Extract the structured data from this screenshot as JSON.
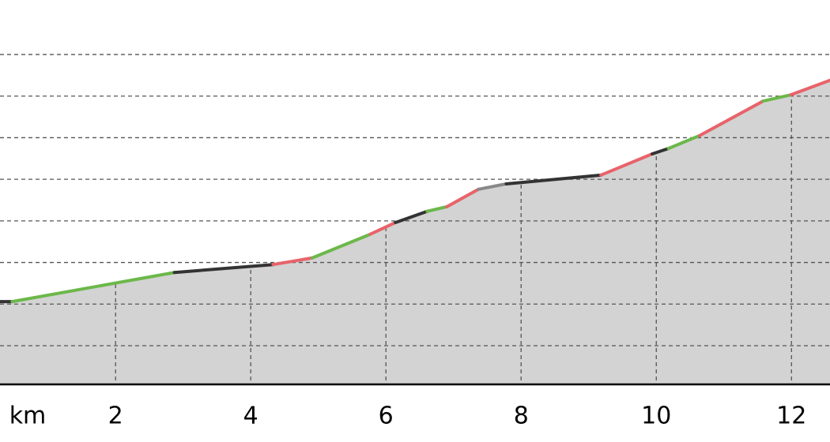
{
  "chart_data": {
    "type": "profile",
    "x_label": "km",
    "x": [
      0.29,
      0.47,
      2.87,
      4.33,
      4.91,
      5.77,
      6.14,
      6.61,
      6.9,
      7.37,
      7.78,
      9.18,
      9.94,
      10.18,
      10.64,
      11.58,
      11.99,
      12.57
    ],
    "values": [
      2.06,
      2.06,
      2.76,
      2.95,
      3.11,
      3.68,
      3.96,
      4.23,
      4.34,
      4.76,
      4.89,
      5.1,
      5.61,
      5.74,
      6.05,
      6.88,
      7.03,
      7.38
    ],
    "segment_colors": [
      "#333333",
      "#6cb84a",
      "#333333",
      "#e8636a",
      "#6cb84a",
      "#e8636a",
      "#333333",
      "#6cb84a",
      "#e8636a",
      "#888888",
      "#333333",
      "#e8636a",
      "#333333",
      "#6cb84a",
      "#e8636a",
      "#6cb84a",
      "#e8636a"
    ],
    "area_color": "#d3d3d3",
    "xlim": [
      0.29,
      12.57
    ],
    "ylim": [
      0.07,
      9.31
    ],
    "xticks": [
      2,
      4,
      6,
      8,
      10,
      12
    ],
    "ygrid": [
      1,
      2,
      3,
      4,
      5,
      6,
      7,
      8
    ],
    "grid": true
  }
}
